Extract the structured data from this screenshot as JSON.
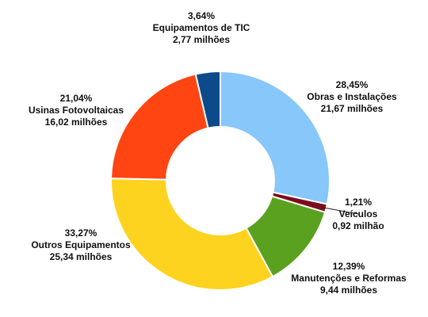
{
  "chart_data": {
    "type": "donut",
    "slices": [
      {
        "name": "Obras e Instalações",
        "percent_label": "28,45%",
        "value_label": "21,67 milhões",
        "value": 21.67,
        "share": 28.45,
        "color": "#87c7fa"
      },
      {
        "name": "Veículos",
        "percent_label": "1,21%",
        "value_label": "0,92 milhão",
        "value": 0.92,
        "share": 1.21,
        "color": "#7a0d1e"
      },
      {
        "name": "Manutenções e Reformas",
        "percent_label": "12,39%",
        "value_label": "9,44 milhões",
        "value": 9.44,
        "share": 12.39,
        "color": "#5aa11f"
      },
      {
        "name": "Outros Equipamentos",
        "percent_label": "33,27%",
        "value_label": "25,34 milhões",
        "value": 25.34,
        "share": 33.27,
        "color": "#fed320"
      },
      {
        "name": "Usinas Fotovoltaicas",
        "percent_label": "21,04%",
        "value_label": "16,02 milhões",
        "value": 16.02,
        "share": 21.04,
        "color": "#fe4512"
      },
      {
        "name": "Equipamentos de TIC",
        "percent_label": "3,64%",
        "value_label": "2,77 milhões",
        "value": 2.77,
        "share": 3.64,
        "color": "#0c4a8a"
      }
    ]
  }
}
